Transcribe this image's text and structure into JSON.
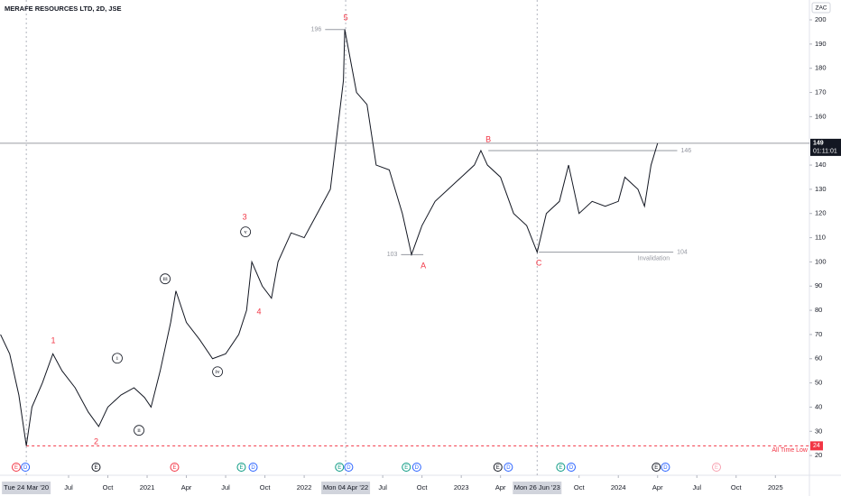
{
  "chart_data": {
    "type": "line",
    "title": "MERAFE RESOURCES LTD, 2D, JSE",
    "currency": "ZAC",
    "color": "#131722",
    "x": [
      0.8,
      1.5,
      2.2,
      2.77,
      3.2,
      4,
      4.8,
      5.5,
      6.5,
      7.5,
      8.3,
      9,
      10,
      11,
      11.8,
      12.3,
      13,
      13.8,
      14.2,
      15,
      16,
      17,
      18,
      19,
      19.6,
      20,
      20.8,
      21.5,
      22,
      23,
      24,
      25,
      26,
      27,
      27.1,
      28,
      28.8,
      29.5,
      30.5,
      31.5,
      32.2,
      33,
      34,
      35,
      36,
      37,
      37.5,
      38,
      39,
      40,
      41,
      41.8,
      42.5,
      43.5,
      44.2,
      45,
      46,
      47,
      48,
      48.5,
      49.5,
      50,
      50.5,
      51
    ],
    "values": [
      70,
      62,
      45,
      24,
      40,
      50,
      62,
      55,
      48,
      38,
      32,
      40,
      45,
      48,
      44,
      40,
      55,
      75,
      88,
      75,
      68,
      60,
      62,
      70,
      80,
      100,
      90,
      85,
      100,
      112,
      110,
      120,
      130,
      175,
      196,
      170,
      165,
      140,
      138,
      120,
      103,
      115,
      125,
      130,
      135,
      140,
      146,
      140,
      135,
      120,
      115,
      104,
      120,
      125,
      140,
      120,
      125,
      123,
      125,
      135,
      130,
      123,
      140,
      149
    ],
    "xlim": [
      0.76,
      62.6
    ],
    "xticks": [
      {
        "value": 6,
        "label": "Jul"
      },
      {
        "value": 9,
        "label": "Oct"
      },
      {
        "value": 12,
        "label": "2021"
      },
      {
        "value": 15,
        "label": "Apr"
      },
      {
        "value": 18,
        "label": "Jul"
      },
      {
        "value": 21,
        "label": "Oct"
      },
      {
        "value": 24,
        "label": "2022"
      },
      {
        "value": 30,
        "label": "Jul"
      },
      {
        "value": 33,
        "label": "Oct"
      },
      {
        "value": 36,
        "label": "2023"
      },
      {
        "value": 39,
        "label": "Apr"
      },
      {
        "value": 45,
        "label": "Oct"
      },
      {
        "value": 48,
        "label": "2024"
      },
      {
        "value": 51,
        "label": "Apr"
      },
      {
        "value": 54,
        "label": "Jul"
      },
      {
        "value": 57,
        "label": "Oct"
      },
      {
        "value": 60,
        "label": "2025"
      }
    ],
    "date_markers": [
      {
        "value": 2.77,
        "label": "Tue 24 Mar '20"
      },
      {
        "value": 27.17,
        "label": "Mon 04 Apr '22"
      },
      {
        "value": 41.8,
        "label": "Mon 26 Jun '23"
      }
    ],
    "ylim": [
      15.2,
      208.2
    ],
    "yticks": [
      20,
      30,
      40,
      50,
      60,
      70,
      80,
      90,
      100,
      110,
      120,
      130,
      140,
      160,
      170,
      180,
      190,
      200
    ],
    "last_price": 149,
    "countdown": "01:11:01",
    "all_time_low": {
      "value": 24,
      "label": "All Time Low"
    },
    "waves": [
      {
        "label": "1",
        "x": 4.83,
        "y": 67.3,
        "style": "red"
      },
      {
        "label": "2",
        "x": 8.1,
        "y": 25.6,
        "style": "red"
      },
      {
        "label": "3",
        "x": 19.45,
        "y": 118.4,
        "style": "red"
      },
      {
        "label": "4",
        "x": 20.55,
        "y": 79.2,
        "style": "red"
      },
      {
        "label": "5",
        "x": 27.17,
        "y": 200.7,
        "style": "red"
      },
      {
        "label": "A",
        "x": 33.1,
        "y": 98.2,
        "style": "red"
      },
      {
        "label": "B",
        "x": 38.07,
        "y": 150.4,
        "style": "red"
      },
      {
        "label": "C",
        "x": 41.93,
        "y": 99.4,
        "style": "red"
      },
      {
        "label": "i",
        "x": 9.72,
        "y": 60.2,
        "style": "circle"
      },
      {
        "label": "ii",
        "x": 11.38,
        "y": 30.4,
        "style": "circle"
      },
      {
        "label": "iii",
        "x": 13.38,
        "y": 93,
        "style": "circle"
      },
      {
        "label": "iv",
        "x": 17.38,
        "y": 54.6,
        "style": "circle"
      },
      {
        "label": "v",
        "x": 19.52,
        "y": 112.4,
        "style": "circle"
      }
    ],
    "levels": [
      {
        "value": 196,
        "x": [
          25.6,
          27.17
        ],
        "side": "left"
      },
      {
        "value": 103,
        "x": [
          31.4,
          33.1
        ],
        "side": "left"
      },
      {
        "value": 146,
        "x": [
          38.07,
          52.5
        ],
        "side": "right"
      },
      {
        "value": 104,
        "x": [
          41.93,
          52.2
        ],
        "side": "right",
        "note": "Invalidation"
      }
    ],
    "events": [
      {
        "x": 2.0,
        "label": "E",
        "color": "#f23645"
      },
      {
        "x": 2.7,
        "label": "D",
        "color": "#2962ff"
      },
      {
        "x": 8.1,
        "label": "E",
        "color": "#131722"
      },
      {
        "x": 14.1,
        "label": "E",
        "color": "#f23645"
      },
      {
        "x": 19.2,
        "label": "E",
        "color": "#089981"
      },
      {
        "x": 20.1,
        "label": "D",
        "color": "#2962ff"
      },
      {
        "x": 26.7,
        "label": "E",
        "color": "#089981"
      },
      {
        "x": 27.4,
        "label": "D",
        "color": "#2962ff"
      },
      {
        "x": 31.8,
        "label": "E",
        "color": "#089981"
      },
      {
        "x": 32.6,
        "label": "D",
        "color": "#2962ff"
      },
      {
        "x": 38.8,
        "label": "E",
        "color": "#131722"
      },
      {
        "x": 39.6,
        "label": "D",
        "color": "#2962ff"
      },
      {
        "x": 43.6,
        "label": "E",
        "color": "#089981"
      },
      {
        "x": 44.4,
        "label": "D",
        "color": "#2962ff"
      },
      {
        "x": 50.9,
        "label": "E",
        "color": "#131722"
      },
      {
        "x": 51.6,
        "label": "D",
        "color": "#2962ff"
      },
      {
        "x": 55.5,
        "label": "E",
        "color": "#f7a1b0"
      }
    ]
  }
}
